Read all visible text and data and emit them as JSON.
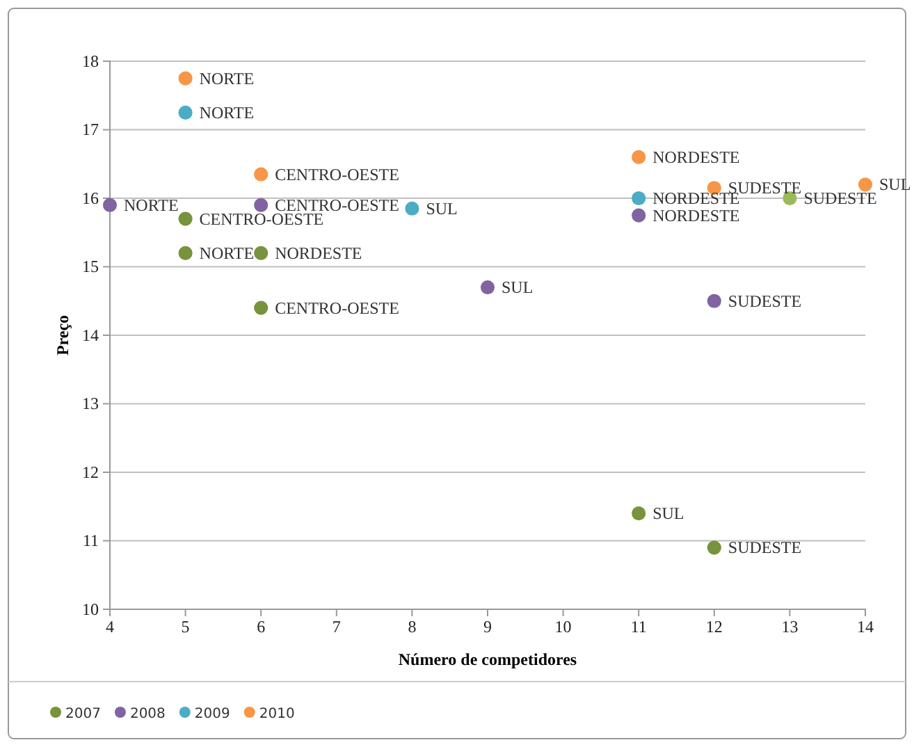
{
  "chart_data": {
    "type": "scatter",
    "xlabel": "Número de competidores",
    "ylabel": "Preço",
    "xlim": [
      4,
      14
    ],
    "xticks": [
      4,
      5,
      6,
      7,
      8,
      9,
      10,
      11,
      12,
      13,
      14
    ],
    "ylim": [
      10,
      18
    ],
    "yticks": [
      10,
      11,
      12,
      13,
      14,
      15,
      16,
      17,
      18
    ],
    "grid": "y",
    "legend": "bottom left",
    "marker": "circle",
    "series": [
      {
        "name": "2007",
        "color": "#77933c",
        "x": [
          5,
          5,
          6,
          6,
          11,
          12,
          13
        ],
        "values": [
          15.7,
          15.2,
          15.2,
          14.4,
          11.4,
          10.9,
          16.0
        ],
        "colors": [
          "#77933c",
          "#77933c",
          "#77933c",
          "#77933c",
          "#77933c",
          "#77933c",
          "#9bbb59"
        ]
      },
      {
        "name": "2008",
        "color": "#8064a2",
        "x": [
          4,
          6,
          9,
          11,
          12
        ],
        "values": [
          15.9,
          15.9,
          14.7,
          15.75,
          14.5
        ]
      },
      {
        "name": "2009",
        "color": "#4bacc6",
        "x": [
          5,
          8,
          11
        ],
        "values": [
          17.25,
          15.85,
          16.0
        ]
      },
      {
        "name": "2010",
        "color": "#f79646",
        "x": [
          5,
          6,
          11,
          12,
          14
        ],
        "values": [
          17.75,
          16.35,
          16.6,
          16.15,
          16.2
        ]
      }
    ],
    "annotations": [
      {
        "text": "CENTRO-OESTE",
        "x": 5,
        "y": 15.7
      },
      {
        "text": "NORTE",
        "x": 5,
        "y": 15.2
      },
      {
        "text": "NORDESTE",
        "x": 6,
        "y": 15.2
      },
      {
        "text": "CENTRO-OESTE",
        "x": 6,
        "y": 14.4
      },
      {
        "text": "SUL",
        "x": 11,
        "y": 11.4
      },
      {
        "text": "SUDESTE",
        "x": 12,
        "y": 10.9
      },
      {
        "text": "SUDESTE",
        "x": 13,
        "y": 16.0
      },
      {
        "text": "NORTE",
        "x": 4,
        "y": 15.9
      },
      {
        "text": "CENTRO-OESTE",
        "x": 6,
        "y": 15.9
      },
      {
        "text": "SUL",
        "x": 9,
        "y": 14.7
      },
      {
        "text": "NORDESTE",
        "x": 11,
        "y": 15.75
      },
      {
        "text": "SUDESTE",
        "x": 12,
        "y": 14.5
      },
      {
        "text": "NORTE",
        "x": 5,
        "y": 17.25
      },
      {
        "text": "SUL",
        "x": 8,
        "y": 15.85
      },
      {
        "text": "NORDESTE",
        "x": 11,
        "y": 16.0
      },
      {
        "text": "NORTE",
        "x": 5,
        "y": 17.75
      },
      {
        "text": "CENTRO-OESTE",
        "x": 6,
        "y": 16.35
      },
      {
        "text": "NORDESTE",
        "x": 11,
        "y": 16.6
      },
      {
        "text": "SUDESTE",
        "x": 12,
        "y": 16.15
      },
      {
        "text": "SUL",
        "x": 14,
        "y": 16.2
      }
    ]
  }
}
